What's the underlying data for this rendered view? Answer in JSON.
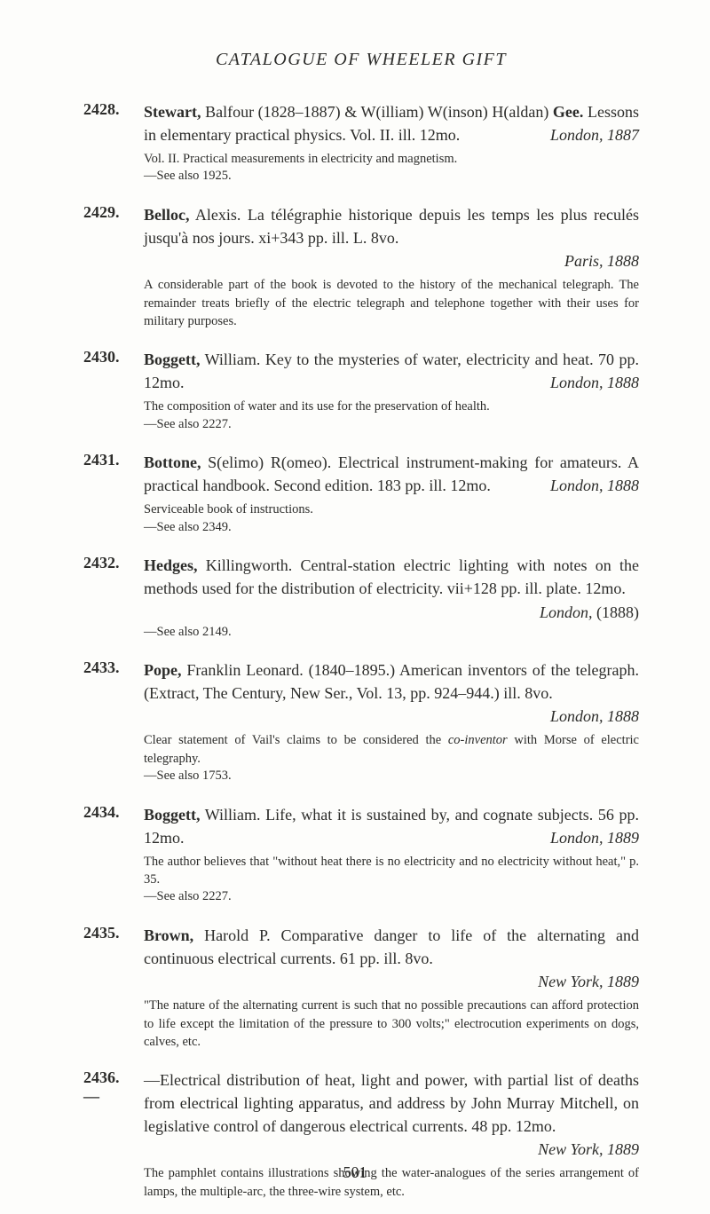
{
  "page": {
    "running_head": "CATALOGUE OF WHEELER GIFT",
    "folio": "501"
  },
  "entries": [
    {
      "num": "2428.",
      "lead_name": "Stewart,",
      "lead_rest": " Balfour (1828–1887) & W(illiam) W(inson) H(aldan) ",
      "lead_name2": "Gee.",
      "body1": "  Lessons in elementary practical physics.  Vol. II.  ill. 12mo.",
      "place_date": "London, 1887",
      "note1": "Vol. II.  Practical measurements in electricity and magnetism.",
      "see": "—See also 1925."
    },
    {
      "num": "2429.",
      "lead_name": "Belloc,",
      "body1": " Alexis.  La télégraphie historique depuis les temps les plus reculés jusqu'à nos jours.  xi+343 pp.  ill.  L. 8vo.",
      "place_date": "Paris, 1888",
      "note1": "A considerable part of the book is devoted to the history of the mechanical telegraph.  The remainder treats briefly of the electric telegraph and telephone together with their uses for military purposes."
    },
    {
      "num": "2430.",
      "lead_name": "Boggett,",
      "body1": " William.  Key to the mysteries of water, electricity and heat.  70 pp.  12mo.",
      "place_date": "London, 1888",
      "note1": "The composition of water and its use for the preservation of health.",
      "see": "—See also 2227."
    },
    {
      "num": "2431.",
      "lead_name": "Bottone,",
      "body1": " S(elimo) R(omeo).  Electrical instrument-making for amateurs.  A practical handbook.  Second edition.  183 pp.  ill. 12mo.",
      "place_date": "London, 1888",
      "note1": "Serviceable book of instructions.",
      "see": "—See also 2349."
    },
    {
      "num": "2432.",
      "lead_name": "Hedges,",
      "body1": " Killingworth.  Central-station electric lighting with notes on the methods used for the distribution of electricity. vii+128 pp.  ill.  plate.  12mo.",
      "place_date_plain_prefix": "London, ",
      "place_date_plain": "(1888)",
      "see": "—See also 2149."
    },
    {
      "num": "2433.",
      "lead_name": "Pope,",
      "body1": " Franklin Leonard.  (1840–1895.)  American inventors of the telegraph.  (Extract, The Century, New Ser., Vol. 13, pp. 924–944.)  ill.  8vo.",
      "place_date": "London, 1888",
      "note1_pre": "Clear statement of Vail's claims to be considered the ",
      "note1_it": "co-inventor",
      "note1_post": " with Morse of electric telegraphy.",
      "see": "—See also 1753."
    },
    {
      "num": "2434.",
      "lead_name": "Boggett,",
      "body1": " William.  Life, what it is sustained by, and cognate subjects.  56 pp.  12mo.",
      "place_date": "London, 1889",
      "note1": "The author believes that \"without heat there is no electricity and no electricity without heat,\" p. 35.",
      "see": "—See also 2227."
    },
    {
      "num": "2435.",
      "lead_name": "Brown,",
      "body1": " Harold P.  Comparative danger to life of the alternating and continuous electrical currents.  61 pp.  ill.  8vo.",
      "place_date": "New York, 1889",
      "note1": "\"The nature of the alternating current is such that no possible precautions can afford protection to life except the limitation of the pressure to 300 volts;\" electrocution experiments on dogs, calves, etc."
    },
    {
      "num": "2436.—",
      "dash_lead": "—Electrical distribution of heat, light and power, with partial list of deaths from electrical lighting apparatus, and address by John Murray Mitchell, on legislative control of dangerous electrical currents.  48 pp.  12mo.",
      "place_date": "New York, 1889",
      "note1": "The pamphlet contains illustrations showing the water-analogues of the series arrangement of lamps, the multiple-arc, the three-wire system, etc."
    }
  ]
}
